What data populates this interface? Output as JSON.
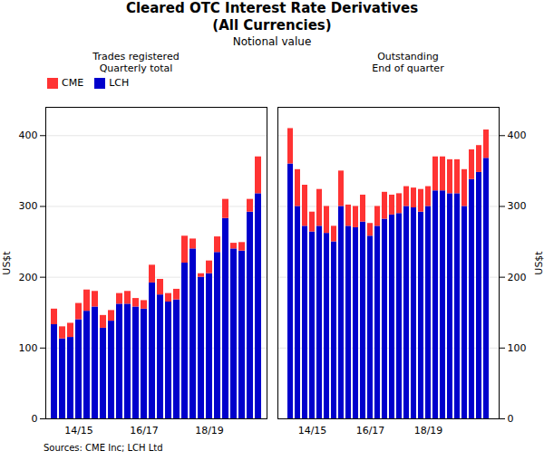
{
  "title": "Cleared OTC Interest Rate Derivatives\n(All Currencies)",
  "subtitle": "Notional value",
  "source": "Sources: CME Inc; LCH Ltd",
  "chart_data": [
    {
      "type": "bar",
      "stacked": true,
      "title": "Trades registered\nQuarterly total",
      "ylabel": "US$t",
      "categories": [
        null,
        null,
        null,
        "14/15",
        null,
        null,
        null,
        null,
        null,
        null,
        null,
        "16/17",
        null,
        null,
        null,
        null,
        null,
        null,
        null,
        "18/19",
        null,
        null,
        null,
        null,
        null,
        null
      ],
      "series": [
        {
          "name": "LCH",
          "color": "#0000CC",
          "values": [
            133,
            113,
            115,
            140,
            152,
            158,
            128,
            138,
            162,
            162,
            158,
            155,
            192,
            175,
            165,
            168,
            220,
            240,
            200,
            205,
            235,
            283,
            240,
            237,
            292,
            318
          ]
        },
        {
          "name": "CME",
          "color": "#FF3333",
          "values": [
            22,
            17,
            20,
            23,
            30,
            22,
            18,
            15,
            15,
            18,
            12,
            12,
            25,
            22,
            12,
            15,
            38,
            14,
            5,
            18,
            22,
            27,
            8,
            12,
            18,
            52
          ]
        }
      ],
      "ylim": [
        0,
        440
      ],
      "yticks": [
        0,
        100,
        200,
        300,
        400
      ],
      "grid": true,
      "legend": "upper left"
    },
    {
      "type": "bar",
      "stacked": true,
      "title": "Outstanding\nEnd of quarter",
      "ylabel": "US$t",
      "categories": [
        null,
        null,
        null,
        "14/15",
        null,
        null,
        null,
        null,
        null,
        null,
        null,
        "16/17",
        null,
        null,
        null,
        null,
        null,
        null,
        null,
        "18/19",
        null,
        null,
        null,
        null,
        null,
        null,
        null,
        null
      ],
      "series": [
        {
          "name": "LCH",
          "color": "#0000CC",
          "values": [
            360,
            300,
            272,
            264,
            272,
            262,
            250,
            300,
            272,
            270,
            278,
            258,
            272,
            282,
            288,
            290,
            300,
            298,
            292,
            300,
            322,
            322,
            318,
            318,
            300,
            338,
            348,
            368
          ]
        },
        {
          "name": "CME",
          "color": "#FF3333",
          "values": [
            50,
            52,
            58,
            28,
            52,
            38,
            22,
            50,
            30,
            30,
            38,
            18,
            28,
            38,
            28,
            28,
            28,
            28,
            32,
            28,
            48,
            48,
            48,
            48,
            52,
            42,
            38,
            40
          ]
        }
      ],
      "ylim": [
        0,
        440
      ],
      "yticks": [
        0,
        100,
        200,
        300,
        400
      ],
      "grid": true
    }
  ]
}
